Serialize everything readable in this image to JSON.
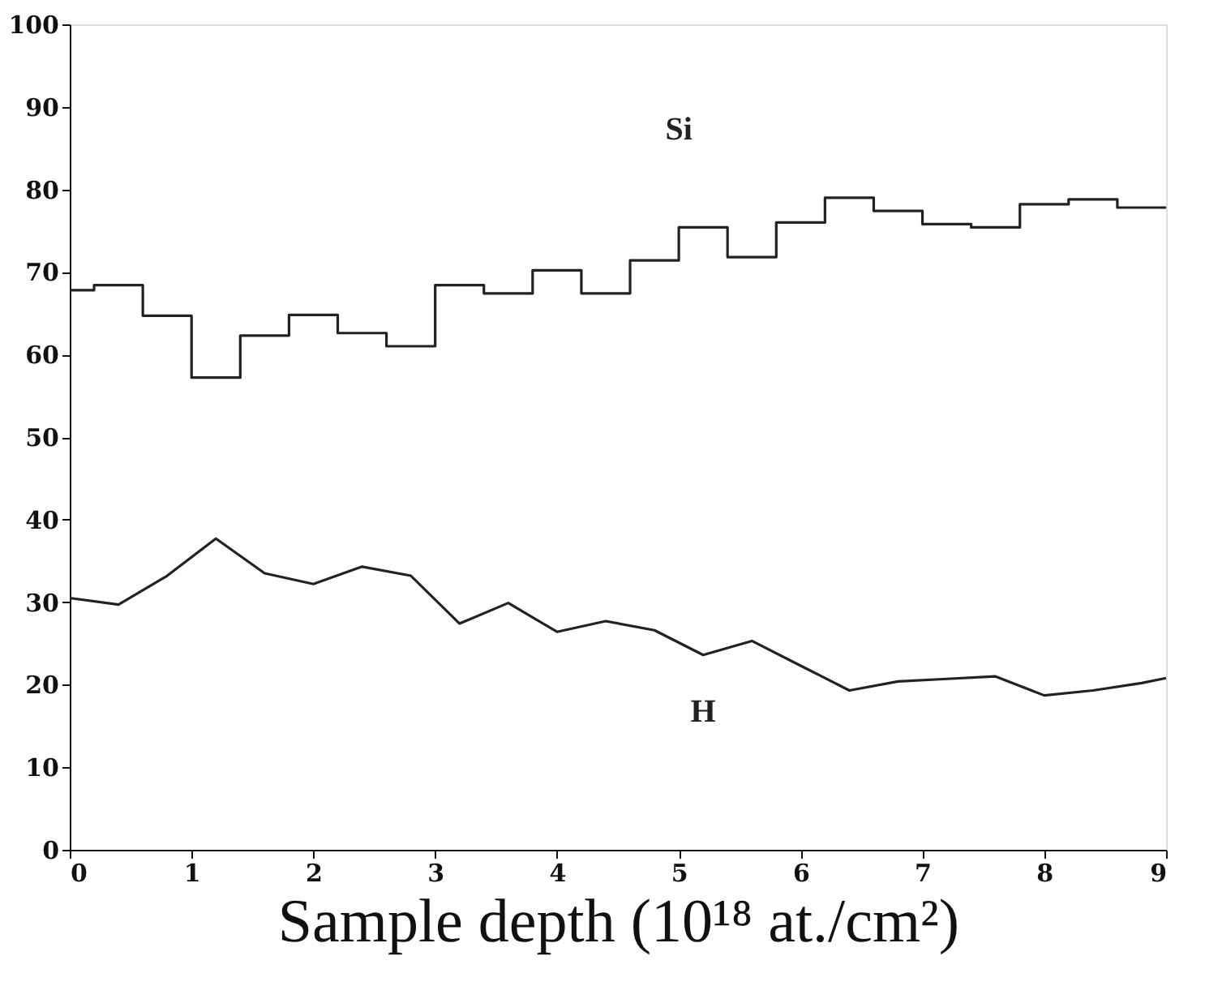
{
  "chart_data": {
    "type": "line",
    "xlabel": "Sample depth (10¹⁸ at./cm²)",
    "xlim": [
      0,
      9
    ],
    "xticks": [
      0,
      1,
      2,
      3,
      4,
      5,
      6,
      7,
      8,
      9
    ],
    "ylim": [
      0,
      100
    ],
    "yticks": [
      0,
      10,
      20,
      30,
      40,
      50,
      60,
      70,
      80,
      90,
      100
    ],
    "grid": false,
    "legend": false,
    "marker": "none",
    "line_style": "solid",
    "series": [
      {
        "name": "Si",
        "type": "step",
        "color": "#222222",
        "x": [
          0,
          0.2,
          0.6,
          1.0,
          1.4,
          1.8,
          2.2,
          2.6,
          3.0,
          3.4,
          3.8,
          4.2,
          4.6,
          5.0,
          5.4,
          5.8,
          6.2,
          6.6,
          7.0,
          7.4,
          7.8,
          8.2,
          8.6,
          9.0
        ],
        "values": [
          67.8,
          68.4,
          64.7,
          57.2,
          62.3,
          64.8,
          62.6,
          61.0,
          68.4,
          67.4,
          70.2,
          67.4,
          71.4,
          75.4,
          71.8,
          76.0,
          79.0,
          77.4,
          75.8,
          75.4,
          78.2,
          78.8,
          77.8,
          77.8
        ]
      },
      {
        "name": "H",
        "type": "line",
        "color": "#222222",
        "x": [
          0,
          0.4,
          0.8,
          1.2,
          1.6,
          2.0,
          2.4,
          2.8,
          3.2,
          3.6,
          4.0,
          4.4,
          4.8,
          5.2,
          5.6,
          6.0,
          6.4,
          6.8,
          7.2,
          7.6,
          8.0,
          8.4,
          8.8,
          9.0
        ],
        "values": [
          30.5,
          29.7,
          33.2,
          37.7,
          33.5,
          32.2,
          34.3,
          33.2,
          27.4,
          29.9,
          26.4,
          27.7,
          26.6,
          23.6,
          25.3,
          22.3,
          19.3,
          20.4,
          20.7,
          21.0,
          18.7,
          19.3,
          20.2,
          20.8
        ]
      }
    ]
  }
}
